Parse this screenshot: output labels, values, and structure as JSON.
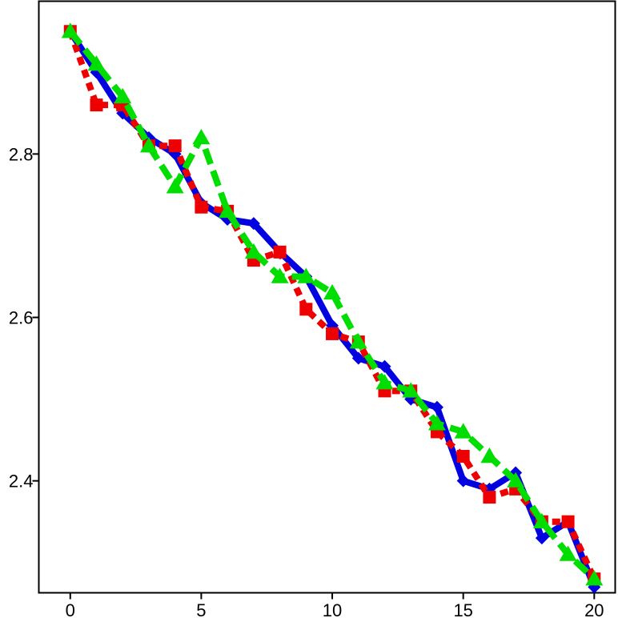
{
  "chart_data": {
    "type": "line",
    "title": "",
    "xlabel": "",
    "ylabel": "",
    "xlim": [
      -1.2,
      20.8
    ],
    "ylim": [
      2.263,
      2.987
    ],
    "x_ticks": [
      0,
      5,
      10,
      15,
      20
    ],
    "x_tick_labels": [
      "0",
      "5",
      "10",
      "15",
      "20"
    ],
    "y_ticks": [
      2.4,
      2.6,
      2.8
    ],
    "y_tick_labels": [
      "2.4",
      "2.6",
      "2.8"
    ],
    "grid": false,
    "legend": "none",
    "x": [
      0,
      1,
      2,
      3,
      4,
      5,
      6,
      7,
      8,
      9,
      10,
      11,
      12,
      13,
      14,
      15,
      16,
      17,
      18,
      19,
      20
    ],
    "series": [
      {
        "color": "#0000e0",
        "line_style": "solid",
        "marker": "diamond",
        "values": [
          2.95,
          2.9,
          2.85,
          2.82,
          2.8,
          2.74,
          2.72,
          2.715,
          2.68,
          2.65,
          2.59,
          2.55,
          2.54,
          2.5,
          2.49,
          2.4,
          2.39,
          2.41,
          2.33,
          2.35,
          2.27
        ]
      },
      {
        "color": "#ee0000",
        "line_style": "dotted",
        "marker": "square",
        "values": [
          2.95,
          2.86,
          2.86,
          2.81,
          2.81,
          2.735,
          2.73,
          2.67,
          2.68,
          2.61,
          2.58,
          2.57,
          2.51,
          2.51,
          2.46,
          2.43,
          2.38,
          2.39,
          2.35,
          2.35,
          2.28
        ]
      },
      {
        "color": "#00dd00",
        "line_style": "dashed",
        "marker": "triangle",
        "values": [
          2.95,
          2.91,
          2.87,
          2.81,
          2.76,
          2.82,
          2.73,
          2.68,
          2.65,
          2.65,
          2.63,
          2.57,
          2.52,
          2.51,
          2.47,
          2.46,
          2.43,
          2.4,
          2.35,
          2.31,
          2.28
        ]
      }
    ]
  }
}
